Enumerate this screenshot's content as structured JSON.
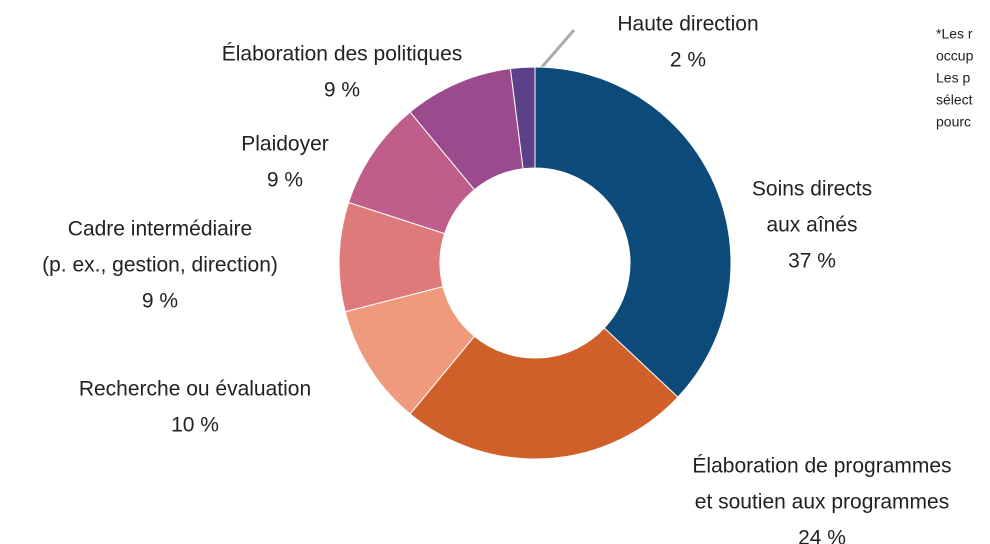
{
  "chart_data": {
    "type": "pie",
    "donut": true,
    "categories": [
      [
        "Soins directs",
        "aux aînés"
      ],
      [
        "Élaboration de programmes",
        "et soutien aux programmes"
      ],
      [
        "Recherche ou évaluation"
      ],
      [
        "Cadre intermédiaire",
        "(p. ex., gestion, direction)"
      ],
      [
        "Plaidoyer"
      ],
      [
        "Élaboration des politiques"
      ],
      [
        "Haute direction"
      ]
    ],
    "values": [
      37,
      24,
      10,
      9,
      9,
      9,
      2
    ],
    "value_labels": [
      "37 %",
      "24 %",
      "10 %",
      "9 %",
      "9 %",
      "9 %",
      "2 %"
    ],
    "colors": [
      "#0c4a79",
      "#d0602a",
      "#f09a7d",
      "#df7a7a",
      "#bf5e8b",
      "#9a4a8d",
      "#5c4189"
    ],
    "note": [
      "*Les r",
      "occup",
      "Les p",
      "sélect",
      "pourc"
    ]
  }
}
